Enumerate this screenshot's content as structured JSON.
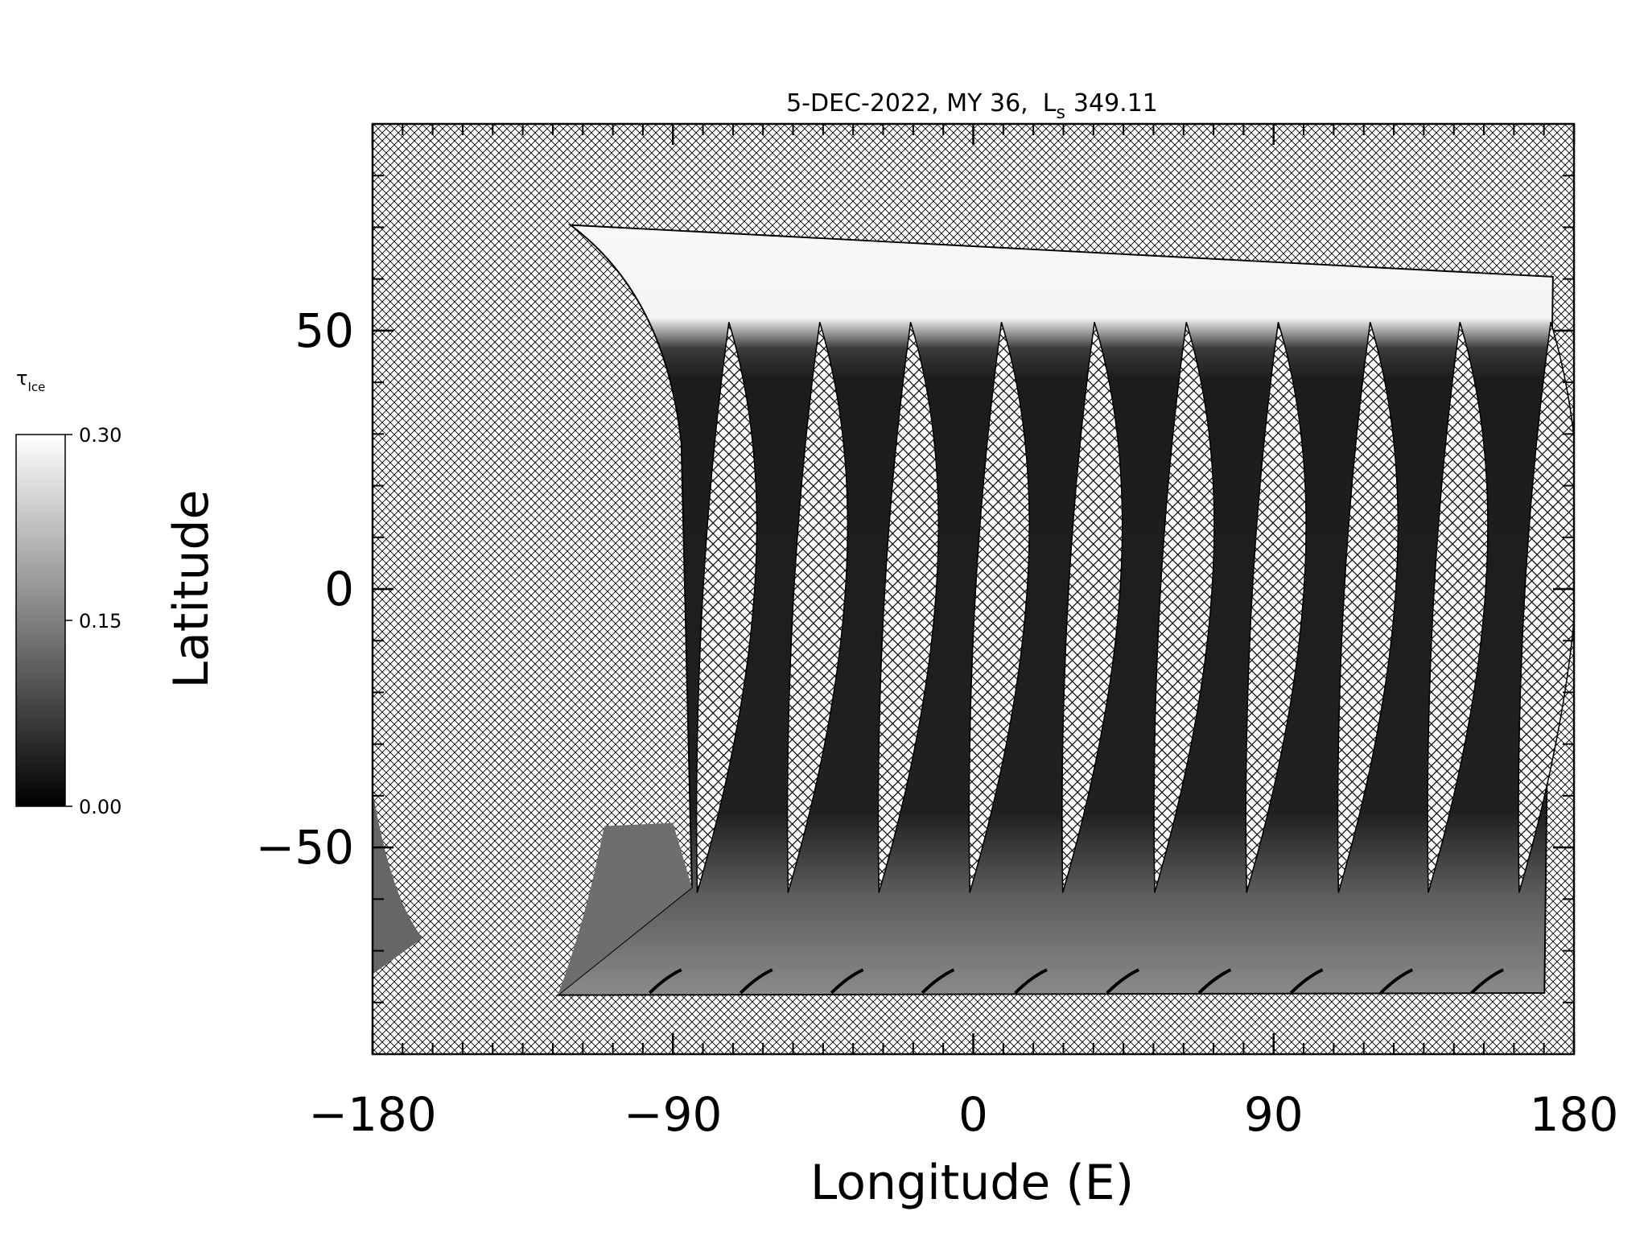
{
  "chart_data": {
    "type": "map",
    "title": "5-DEC-2022, MY 36,",
    "title_symbol": "L",
    "title_subscript": "s",
    "title_value": "349.11",
    "x_label": "Longitude (E)",
    "y_label": "Latitude",
    "xlim": [
      -180,
      180
    ],
    "xticks": [
      {
        "value": -180,
        "label": "−180"
      },
      {
        "value": -90,
        "label": "−90"
      },
      0,
      90,
      180
    ],
    "ylim": [
      -90,
      90
    ],
    "yticks": [
      {
        "value": -50,
        "label": "−50"
      },
      0,
      50
    ],
    "colorbar": {
      "label": "τ",
      "label_subscript": "Ice",
      "lim": [
        0,
        0.3
      ],
      "ticks": [
        {
          "value": 0,
          "label": "0.00"
        },
        {
          "value": 0.15,
          "label": "0.15"
        },
        {
          "value": 0.3,
          "label": "0.30"
        }
      ]
    }
  }
}
